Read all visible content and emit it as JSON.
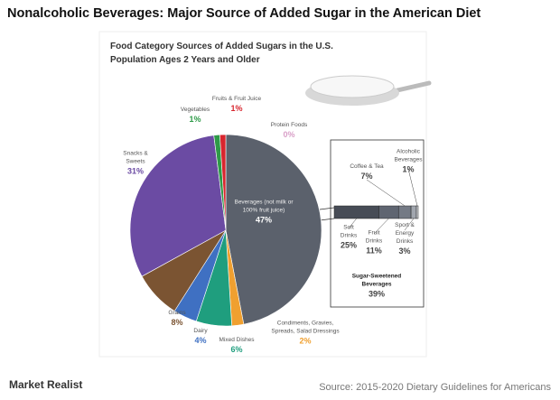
{
  "page_title": "Nonalcoholic Beverages: Major Source of Added Sugar in the American Diet",
  "brand": "Market Realist",
  "source": "Source: 2015-2020 Dietary Guidelines for Americans",
  "chart_data": [
    {
      "type": "pie",
      "title": "Food Category Sources of Added Sugars in the U.S. Population Ages 2 Years and Older",
      "categories": [
        "Beverages (not milk or 100% fruit juice)",
        "Condiments, Gravies, Spreads, Salad Dressings",
        "Mixed Dishes",
        "Dairy",
        "Grains",
        "Snacks & Sweets",
        "Vegetables",
        "Fruits & Fruit Juice",
        "Protein Foods"
      ],
      "values": [
        47,
        2,
        6,
        4,
        8,
        31,
        1,
        1,
        0
      ],
      "value_labels": [
        "47%",
        "2%",
        "6%",
        "4%",
        "8%",
        "31%",
        "1%",
        "1%",
        "0%"
      ],
      "colors": [
        "#5b616c",
        "#f0a030",
        "#1f9e7e",
        "#3f70c2",
        "#7b5432",
        "#6b4ba3",
        "#2e9a48",
        "#d8262e",
        "#d9a0c8"
      ]
    },
    {
      "type": "stacked-bar",
      "categories": [
        "Soft Drinks",
        "Fruit Drinks",
        "Coffee & Tea",
        "Sport & Energy Drinks",
        "Alcoholic Beverages"
      ],
      "values": [
        25,
        11,
        7,
        3,
        1
      ],
      "value_labels": [
        "25%",
        "11%",
        "7%",
        "3%",
        "1%"
      ],
      "colors": [
        "#474c56",
        "#5f6571",
        "#747a85",
        "#a1a6ae",
        "#cfd2d6"
      ],
      "annotation": {
        "text": "Sugar-Sweetened Beverages",
        "value": 39,
        "value_label": "39%"
      }
    }
  ]
}
